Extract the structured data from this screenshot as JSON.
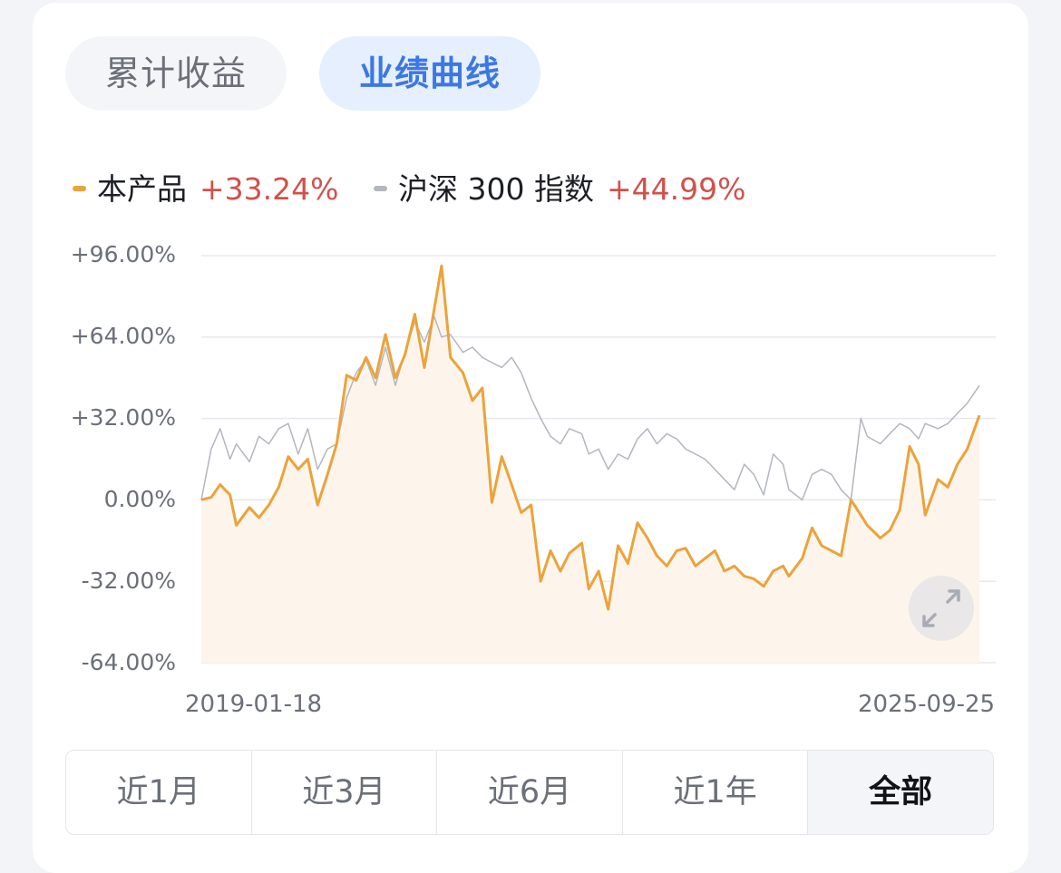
{
  "tabs": {
    "cumulative": "累计收益",
    "performance": "业绩曲线"
  },
  "legend": [
    {
      "name": "本产品",
      "value": "+33.24%",
      "color": "#eba33a"
    },
    {
      "name": "沪深 300 指数",
      "value": "+44.99%",
      "color": "#b4b6be"
    }
  ],
  "range_buttons": [
    "近1月",
    "近3月",
    "近6月",
    "近1年",
    "全部"
  ],
  "active_range": "全部",
  "icons": {
    "expand": "expand-icon"
  },
  "colors": {
    "product_line": "#eba33a",
    "product_fill": "#fdf5ec",
    "index_line": "#b4b6be",
    "grid": "#e8e9ec",
    "positive": "#d2504b",
    "active_tab_text": "#3c78e3",
    "active_tab_bg": "#e6effd"
  },
  "chart_data": {
    "type": "line",
    "x_start": "2019-01-18",
    "x_end": "2025-09-25",
    "x_tick_labels": [
      "2019-01-18",
      "2025-09-25"
    ],
    "y_tick_labels": [
      "+96.00%",
      "+64.00%",
      "+32.00%",
      "0.00%",
      "-32.00%",
      "-64.00%"
    ],
    "ylim": [
      -64,
      96
    ],
    "grid": true,
    "legend_position": "top-left",
    "series": [
      {
        "name": "本产品",
        "end_value": "+33.24%",
        "x": [
          "2019-01-18",
          "2019-02-18",
          "2019-03-18",
          "2019-04-18",
          "2019-05-08",
          "2019-06-18",
          "2019-07-18",
          "2019-08-18",
          "2019-09-18",
          "2019-10-18",
          "2019-11-18",
          "2019-12-18",
          "2020-01-18",
          "2020-02-18",
          "2020-03-18",
          "2020-04-18",
          "2020-05-18",
          "2020-06-18",
          "2020-07-18",
          "2020-08-18",
          "2020-09-18",
          "2020-10-18",
          "2020-11-18",
          "2020-12-18",
          "2021-01-18",
          "2021-02-10",
          "2021-03-10",
          "2021-04-18",
          "2021-05-18",
          "2021-06-18",
          "2021-07-18",
          "2021-08-18",
          "2021-09-18",
          "2021-10-18",
          "2021-11-18",
          "2021-12-18",
          "2022-01-18",
          "2022-02-18",
          "2022-03-18",
          "2022-04-26",
          "2022-05-18",
          "2022-06-18",
          "2022-07-18",
          "2022-08-18",
          "2022-09-18",
          "2022-10-18",
          "2022-11-18",
          "2022-12-18",
          "2023-01-18",
          "2023-02-18",
          "2023-03-18",
          "2023-04-18",
          "2023-05-18",
          "2023-06-18",
          "2023-07-18",
          "2023-08-18",
          "2023-09-18",
          "2023-10-18",
          "2023-11-18",
          "2023-12-18",
          "2024-01-18",
          "2024-02-05",
          "2024-03-18",
          "2024-04-18",
          "2024-05-18",
          "2024-06-18",
          "2024-07-18",
          "2024-08-18",
          "2024-09-18",
          "2024-10-08",
          "2024-11-18",
          "2024-12-18",
          "2025-01-18",
          "2025-02-18",
          "2025-03-18",
          "2025-04-08",
          "2025-05-18",
          "2025-06-18",
          "2025-07-18",
          "2025-08-18",
          "2025-09-25"
        ],
        "values": [
          0,
          1,
          6,
          2,
          -10,
          -3,
          -7,
          -2,
          5,
          17,
          12,
          16,
          -2,
          10,
          22,
          49,
          47,
          56,
          48,
          65,
          48,
          57,
          73,
          52,
          75,
          92,
          56,
          50,
          39,
          44,
          -1,
          17,
          6,
          -5,
          -2,
          -32,
          -20,
          -28,
          -21,
          -17,
          -35,
          -28,
          -43,
          -18,
          -25,
          -9,
          -15,
          -22,
          -26,
          -20,
          -19,
          -26,
          -23,
          -20,
          -28,
          -26,
          -30,
          -31,
          -34,
          -28,
          -26,
          -30,
          -23,
          -11,
          -18,
          -20,
          -22,
          0,
          -6,
          -10,
          -15,
          -12,
          -4,
          21,
          14,
          -6,
          8,
          5,
          14,
          20,
          33.24
        ]
      },
      {
        "name": "沪深 300 指数",
        "end_value": "+44.99%",
        "x": [
          "2019-01-18",
          "2019-02-18",
          "2019-03-18",
          "2019-04-18",
          "2019-05-08",
          "2019-06-18",
          "2019-07-18",
          "2019-08-18",
          "2019-09-18",
          "2019-10-18",
          "2019-11-18",
          "2019-12-18",
          "2020-01-18",
          "2020-02-18",
          "2020-03-18",
          "2020-04-18",
          "2020-05-18",
          "2020-06-18",
          "2020-07-18",
          "2020-08-18",
          "2020-09-18",
          "2020-10-18",
          "2020-11-18",
          "2020-12-18",
          "2021-01-18",
          "2021-02-10",
          "2021-03-10",
          "2021-04-18",
          "2021-05-18",
          "2021-06-18",
          "2021-07-18",
          "2021-08-18",
          "2021-09-18",
          "2021-10-18",
          "2021-11-18",
          "2021-12-18",
          "2022-01-18",
          "2022-02-18",
          "2022-03-18",
          "2022-04-26",
          "2022-05-18",
          "2022-06-18",
          "2022-07-18",
          "2022-08-18",
          "2022-09-18",
          "2022-10-18",
          "2022-11-18",
          "2022-12-18",
          "2023-01-18",
          "2023-02-18",
          "2023-03-18",
          "2023-04-18",
          "2023-05-18",
          "2023-06-18",
          "2023-07-18",
          "2023-08-18",
          "2023-09-18",
          "2023-10-18",
          "2023-11-18",
          "2023-12-18",
          "2024-01-18",
          "2024-02-05",
          "2024-03-18",
          "2024-04-18",
          "2024-05-18",
          "2024-06-18",
          "2024-07-18",
          "2024-08-18",
          "2024-09-18",
          "2024-10-08",
          "2024-11-18",
          "2024-12-18",
          "2025-01-18",
          "2025-02-18",
          "2025-03-18",
          "2025-04-08",
          "2025-05-18",
          "2025-06-18",
          "2025-07-18",
          "2025-08-18",
          "2025-09-25"
        ],
        "values": [
          0,
          20,
          28,
          16,
          22,
          15,
          25,
          22,
          28,
          30,
          18,
          28,
          12,
          20,
          22,
          40,
          50,
          55,
          45,
          60,
          45,
          58,
          70,
          62,
          72,
          64,
          65,
          58,
          60,
          56,
          54,
          52,
          56,
          50,
          40,
          32,
          25,
          22,
          28,
          26,
          18,
          20,
          12,
          18,
          16,
          24,
          28,
          22,
          26,
          24,
          20,
          18,
          16,
          12,
          8,
          4,
          14,
          10,
          2,
          18,
          14,
          4,
          0,
          10,
          12,
          10,
          4,
          0,
          32,
          25,
          22,
          26,
          30,
          28,
          24,
          30,
          28,
          30,
          34,
          38,
          44.99
        ]
      }
    ]
  }
}
